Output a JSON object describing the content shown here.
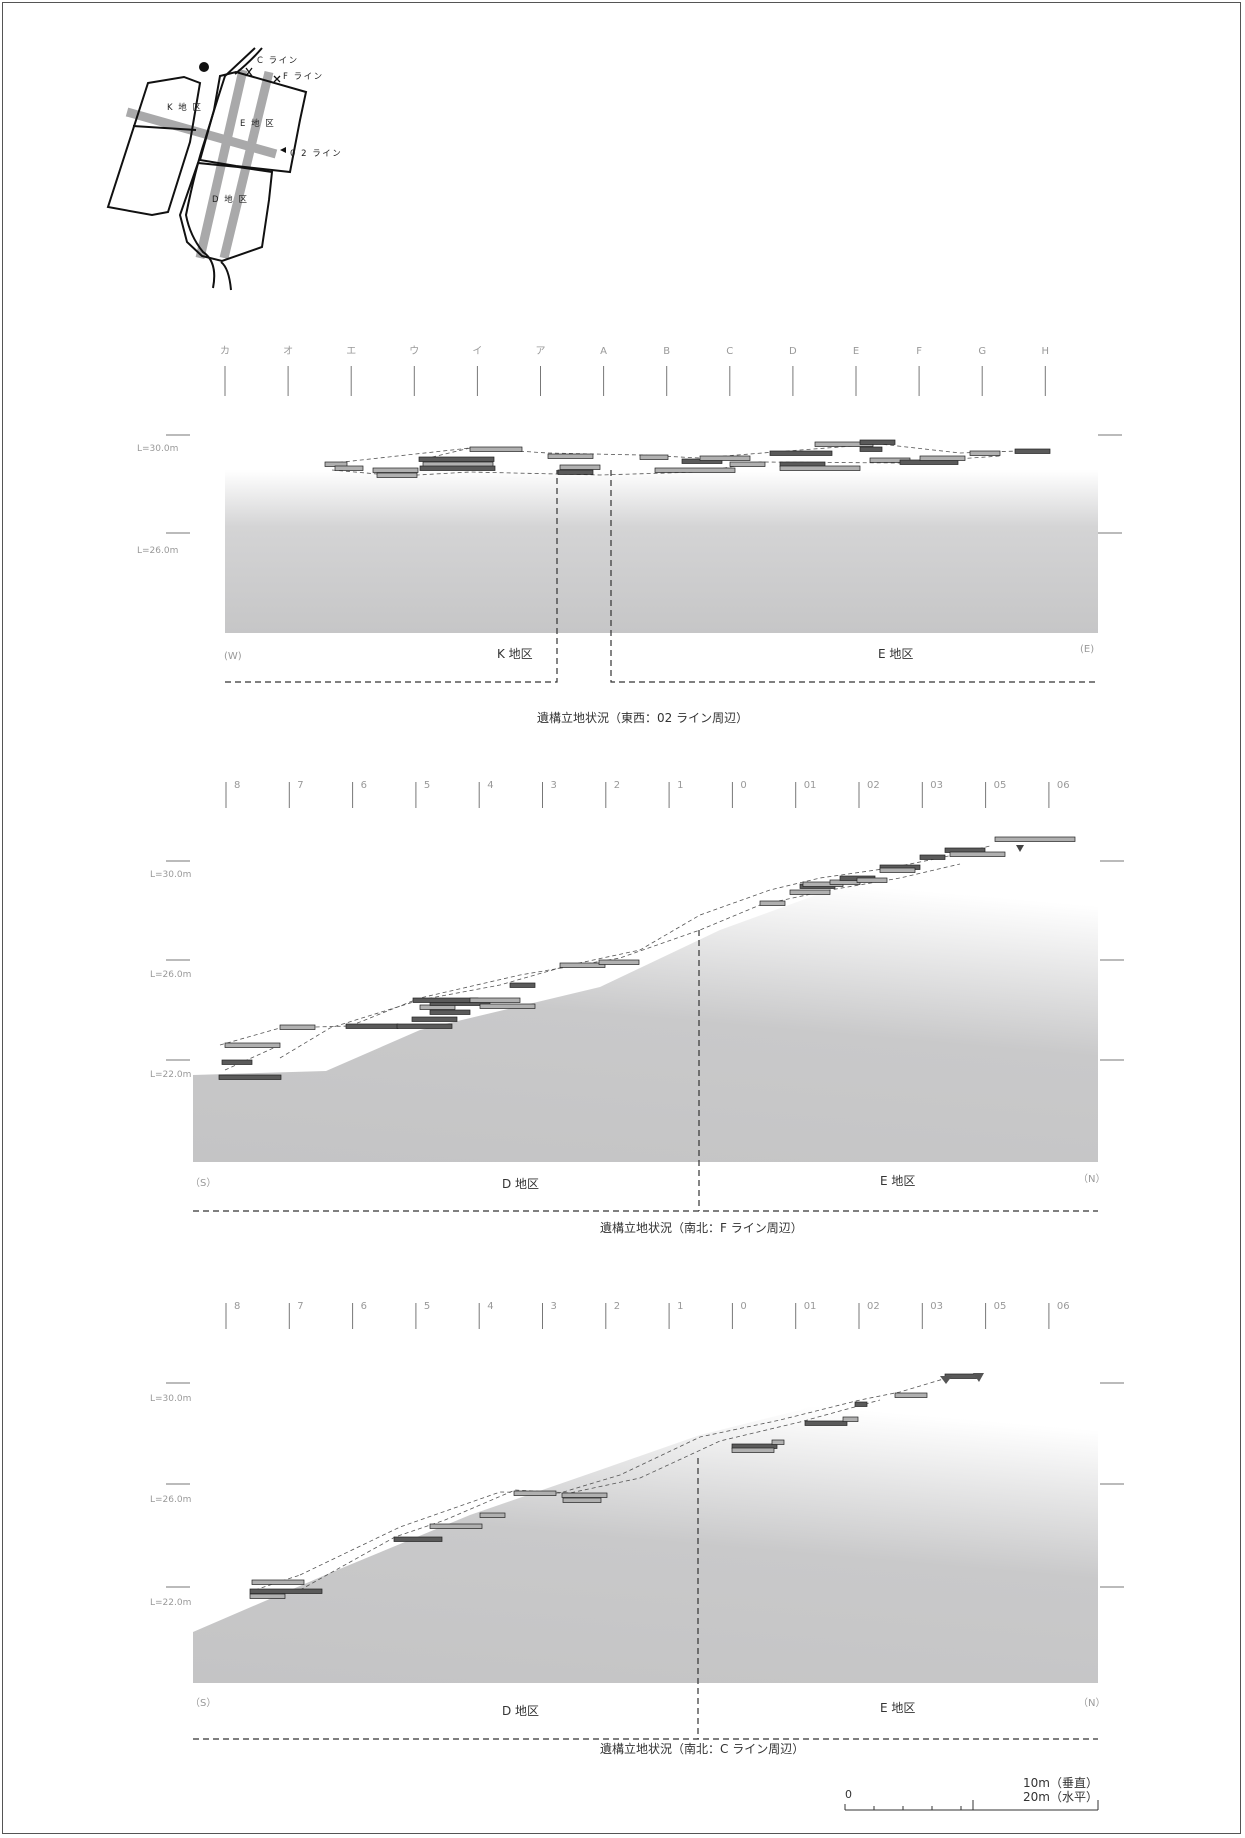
{
  "key_map": {
    "labels": {
      "c_line": "C ライン",
      "f_line": "F ライン",
      "line_02": "0 2 ライン",
      "k_district": "K 地 区",
      "e_district": "E 地 区",
      "d_district": "D 地 区"
    }
  },
  "sections": [
    {
      "id": "ew-02",
      "ticks": [
        "カ",
        "オ",
        "エ",
        "ウ",
        "イ",
        "ア",
        "A",
        "B",
        "C",
        "D",
        "E",
        "F",
        "G",
        "H"
      ],
      "levels": [
        "L=30.0m",
        "L=26.0m"
      ],
      "left_dir": "(W)",
      "right_dir": "(E)",
      "left_area": "K 地区",
      "right_area": "E 地区",
      "caption": "遺構立地状況（東西：02 ライン周辺）"
    },
    {
      "id": "ns-f",
      "ticks": [
        "8",
        "7",
        "6",
        "5",
        "4",
        "3",
        "2",
        "1",
        "0",
        "01",
        "02",
        "03",
        "05",
        "06"
      ],
      "levels": [
        "L=30.0m",
        "L=26.0m",
        "L=22.0m"
      ],
      "left_dir": "（S）",
      "right_dir": "（N）",
      "left_area": "D 地区",
      "right_area": "E 地区",
      "caption": "遺構立地状況（南北：F ライン周辺）"
    },
    {
      "id": "ns-c",
      "ticks": [
        "8",
        "7",
        "6",
        "5",
        "4",
        "3",
        "2",
        "1",
        "0",
        "01",
        "02",
        "03",
        "05",
        "06"
      ],
      "levels": [
        "L=30.0m",
        "L=26.0m",
        "L=22.0m"
      ],
      "left_dir": "（S）",
      "right_dir": "（N）",
      "left_area": "D 地区",
      "right_area": "E 地区",
      "caption": "遺構立地状況（南北：C ライン周辺）"
    }
  ],
  "scale": {
    "zero": "0",
    "vertical": "10m（垂直）",
    "horizontal": "20m（水平）"
  },
  "colors": {
    "ground": "#c8c8c9",
    "feature_dark": "#5a5a5a",
    "feature_light": "#b0b0b0",
    "line": "#444444"
  }
}
